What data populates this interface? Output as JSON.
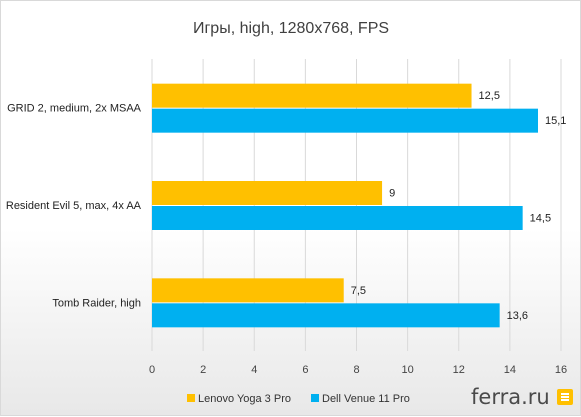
{
  "chart_data": {
    "type": "bar",
    "orientation": "horizontal",
    "title": "Игры, high, 1280x768, FPS",
    "categories": [
      "GRID 2, medium, 2x MSAA",
      "Resident Evil 5, max, 4x AA",
      "Tomb Raider, high"
    ],
    "series": [
      {
        "name": "Lenovo Yoga 3 Pro",
        "values": [
          12.5,
          9,
          7.5
        ],
        "labels": [
          "12,5",
          "9",
          "7,5"
        ],
        "color": "#FFC000"
      },
      {
        "name": "Dell Venue 11 Pro",
        "values": [
          15.1,
          14.5,
          13.6
        ],
        "labels": [
          "15,1",
          "14,5",
          "13,6"
        ],
        "color": "#00B0F0"
      }
    ],
    "xlim": [
      0,
      16
    ],
    "xticks": [
      "0",
      "2",
      "4",
      "6",
      "8",
      "10",
      "12",
      "14",
      "16"
    ],
    "grid": true,
    "legend_position": "bottom"
  },
  "watermark": {
    "text": "ferra.ru",
    "icon": "ferra-logo-icon",
    "color": "#FFC000"
  }
}
